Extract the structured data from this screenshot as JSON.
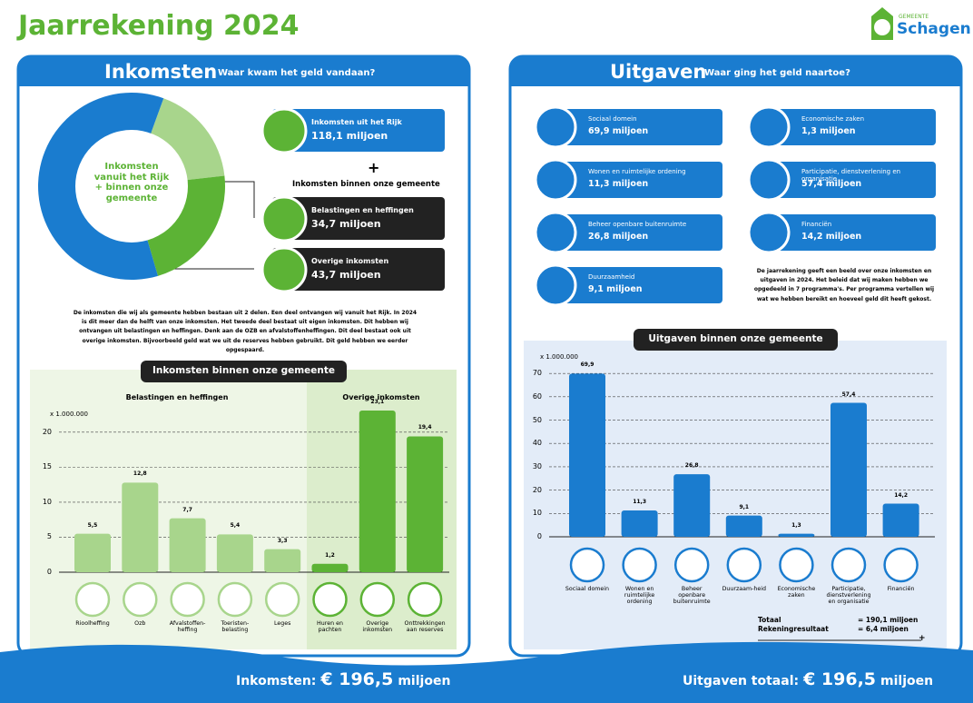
{
  "header": {
    "title": "Jaarrekening 2024",
    "logo_small": "GEMEENTE",
    "logo_name": "Schagen"
  },
  "inkomsten": {
    "title": "Inkomsten",
    "subtitle": "Waar kwam het geld vandaan?",
    "donut": {
      "type": "pie",
      "center_text": "Inkomsten vanuit het Rijk + binnen onze gemeente",
      "values": [
        34.7,
        43.7,
        118.1
      ],
      "colors": [
        "#a8d58c",
        "#5cb335",
        "#1a7ccf"
      ]
    },
    "cards": [
      {
        "label": "Inkomsten uit het Rijk",
        "amount": "118,1 miljoen"
      },
      {
        "label": "Belastingen en heffingen",
        "amount": "34,7 miljoen"
      },
      {
        "label": "Overige inkomsten",
        "amount": "43,7 miljoen"
      }
    ],
    "plus": "+",
    "group_heading": "Inkomsten binnen onze gemeente",
    "paragraph": "De inkomsten die wij als gemeente hebben bestaan uit 2 delen. Een deel ontvangen wij vanuit het Rijk. In 2024 is dit meer dan de helft van onze inkomsten. Het tweede deel bestaat uit eigen inkomsten. Dit hebben wij ontvangen uit belastingen en heffingen. Denk aan de OZB en afvalstoffenheffingen. Dit deel bestaat ook uit overige inkomsten. Bijvoorbeeld geld wat we uit de reserves hebben gebruikt. Dit geld hebben we eerder opgespaard.",
    "chart": {
      "type": "bar",
      "title": "Inkomsten binnen onze gemeente",
      "groups": [
        "Belastingen en heffingen",
        "Overige inkomsten"
      ],
      "unit": "x 1.000.000",
      "categories": [
        "Rioolheffing",
        "Ozb",
        "Afvalstoffen-heffing",
        "Toeristen-belasting",
        "Leges",
        "Huren en pachten",
        "Overige inkomsten",
        "Onttrekkingen aan reserves"
      ],
      "values": [
        5.5,
        12.8,
        7.7,
        5.4,
        3.3,
        1.2,
        23.1,
        19.4
      ],
      "value_labels": [
        "5,5",
        "12,8",
        "7,7",
        "5,4",
        "3,3",
        "1,2",
        "23,1",
        "19,4"
      ],
      "colors": [
        "#a8d58c",
        "#a8d58c",
        "#a8d58c",
        "#a8d58c",
        "#a8d58c",
        "#5cb335",
        "#5cb335",
        "#5cb335"
      ],
      "ylim": [
        0,
        24
      ],
      "yticks": [
        0,
        5,
        10,
        15,
        20
      ],
      "grid": true
    }
  },
  "uitgaven": {
    "title": "Uitgaven",
    "subtitle": "Waar ging het geld naartoe?",
    "cards": [
      {
        "label": "Sociaal domein",
        "amount": "69,9 miljoen"
      },
      {
        "label": "Wonen en ruimtelijke ordening",
        "amount": "11,3 miljoen"
      },
      {
        "label": "Beheer openbare buitenruimte",
        "amount": "26,8 miljoen"
      },
      {
        "label": "Duurzaamheid",
        "amount": "9,1 miljoen"
      },
      {
        "label": "Economische zaken",
        "amount": "1,3 miljoen"
      },
      {
        "label": "Participatie, dienstverlening en organisatie",
        "amount": "57,4 miljoen"
      },
      {
        "label": "Financiën",
        "amount": "14,2 miljoen"
      }
    ],
    "paragraph": "De jaarrekening geeft een beeld over onze inkomsten en uitgaven in 2024. Het beleid dat wij maken hebben we opgedeeld in 7 programma's. Per programma vertellen wij wat we hebben bereikt en hoeveel geld dit heeft gekost.",
    "chart": {
      "type": "bar",
      "title": "Uitgaven binnen onze gemeente",
      "unit": "x 1.000.000",
      "categories": [
        "Sociaal domein",
        "Wonen en ruimtelijke ordening",
        "Beheer openbare buitenruimte",
        "Duurzaam-heid",
        "Economische zaken",
        "Participatie, dienstverlening en organisatie",
        "Financiën"
      ],
      "values": [
        69.9,
        11.3,
        26.8,
        9.1,
        1.3,
        57.4,
        14.2
      ],
      "value_labels": [
        "69,9",
        "11,3",
        "26,8",
        "9,1",
        "1,3",
        "57,4",
        "14,2"
      ],
      "color": "#1a7ccf",
      "ylim": [
        0,
        72
      ],
      "yticks": [
        0,
        10,
        20,
        30,
        40,
        50,
        60,
        70
      ],
      "grid": true
    },
    "totals": [
      {
        "label": "Totaal",
        "amount": "= 190,1 miljoen"
      },
      {
        "label": "Rekeningresultaat",
        "amount": "= 6,4 miljoen"
      }
    ],
    "plus": "+"
  },
  "footer": {
    "left": {
      "label": "Inkomsten:",
      "amount": "€ 196,5",
      "unit": "miljoen"
    },
    "right": {
      "label": "Uitgaven totaal:",
      "amount": "€ 196,5",
      "unit": "miljoen"
    }
  }
}
